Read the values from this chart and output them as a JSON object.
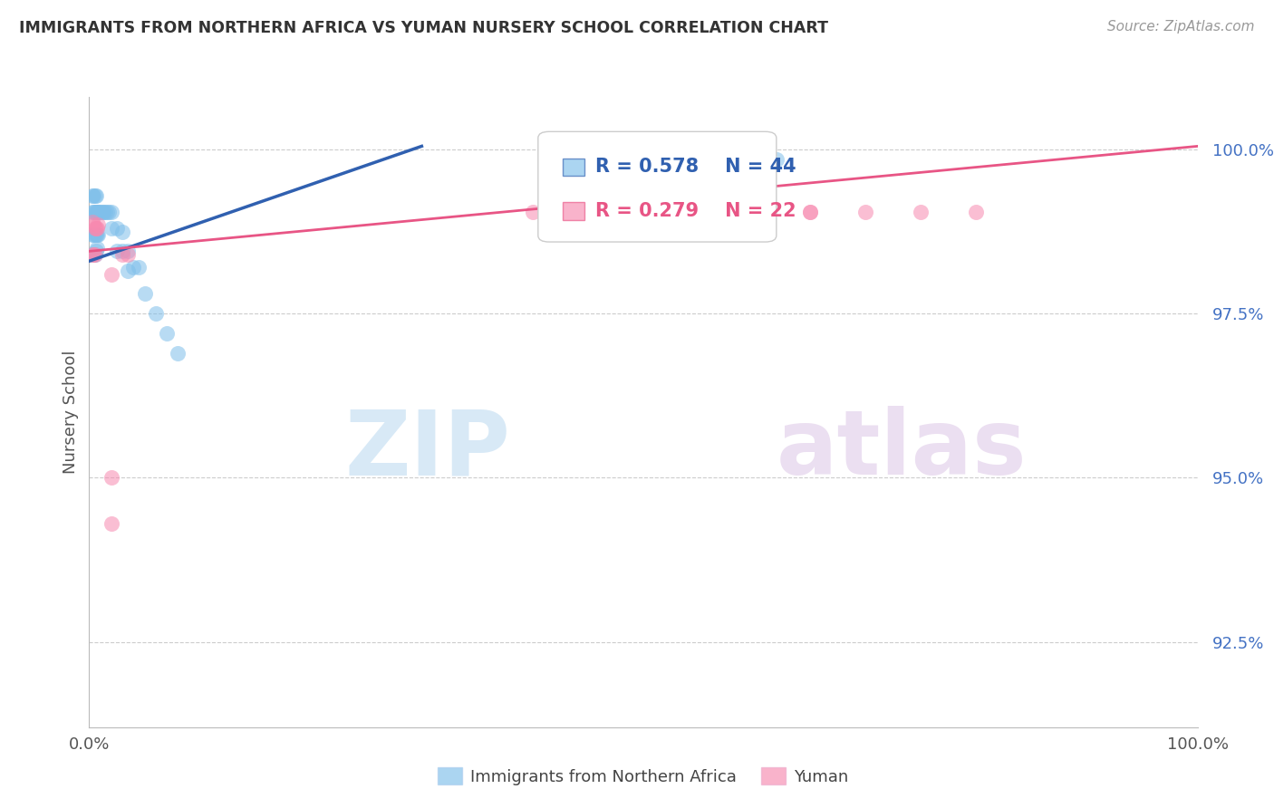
{
  "title": "IMMIGRANTS FROM NORTHERN AFRICA VS YUMAN NURSERY SCHOOL CORRELATION CHART",
  "source": "Source: ZipAtlas.com",
  "ylabel": "Nursery School",
  "ytick_labels": [
    "100.0%",
    "97.5%",
    "95.0%",
    "92.5%"
  ],
  "ytick_values": [
    1.0,
    0.975,
    0.95,
    0.925
  ],
  "xlim": [
    0.0,
    1.0
  ],
  "ylim": [
    0.912,
    1.008
  ],
  "legend_blue_r": "R = 0.578",
  "legend_blue_n": "N = 44",
  "legend_pink_r": "R = 0.279",
  "legend_pink_n": "N = 22",
  "legend_label_blue": "Immigrants from Northern Africa",
  "legend_label_pink": "Yuman",
  "blue_color": "#7fbfea",
  "pink_color": "#f78ab0",
  "blue_line_color": "#3060b0",
  "pink_line_color": "#e85585",
  "blue_scatter_x": [
    0.003,
    0.004,
    0.005,
    0.006,
    0.007,
    0.008,
    0.009,
    0.01,
    0.012,
    0.013,
    0.014,
    0.016,
    0.018,
    0.02,
    0.003,
    0.004,
    0.005,
    0.006,
    0.007,
    0.008,
    0.003,
    0.004,
    0.005,
    0.006,
    0.007,
    0.02,
    0.025,
    0.03,
    0.025,
    0.03,
    0.035,
    0.035,
    0.04,
    0.045,
    0.05,
    0.06,
    0.07,
    0.08,
    0.55,
    0.62,
    0.003,
    0.004,
    0.005,
    0.006
  ],
  "blue_scatter_y": [
    0.9905,
    0.9905,
    0.9905,
    0.9905,
    0.9905,
    0.9905,
    0.9905,
    0.9905,
    0.9905,
    0.9905,
    0.9905,
    0.9905,
    0.9905,
    0.9905,
    0.987,
    0.987,
    0.987,
    0.987,
    0.987,
    0.987,
    0.984,
    0.984,
    0.984,
    0.9845,
    0.985,
    0.988,
    0.988,
    0.9875,
    0.9845,
    0.9845,
    0.9845,
    0.9815,
    0.982,
    0.982,
    0.978,
    0.975,
    0.972,
    0.969,
    0.997,
    0.9985,
    0.993,
    0.993,
    0.993,
    0.993
  ],
  "pink_scatter_x": [
    0.003,
    0.004,
    0.005,
    0.006,
    0.007,
    0.008,
    0.003,
    0.004,
    0.005,
    0.03,
    0.035,
    0.6,
    0.65,
    0.7,
    0.75,
    0.8,
    0.6,
    0.65,
    0.4,
    0.02,
    0.02,
    0.02
  ],
  "pink_scatter_y": [
    0.989,
    0.9885,
    0.988,
    0.988,
    0.988,
    0.9885,
    0.984,
    0.984,
    0.984,
    0.984,
    0.984,
    0.9905,
    0.9905,
    0.9905,
    0.9905,
    0.9905,
    0.9905,
    0.9905,
    0.9905,
    0.95,
    0.943,
    0.981
  ],
  "blue_trendline_x": [
    0.0,
    0.3
  ],
  "blue_trendline_y": [
    0.983,
    1.0005
  ],
  "pink_trendline_x": [
    0.0,
    1.0
  ],
  "pink_trendline_y": [
    0.9845,
    1.0005
  ],
  "watermark_zip": "ZIP",
  "watermark_atlas": "atlas",
  "background_color": "#ffffff",
  "grid_color": "#cccccc",
  "title_color": "#333333",
  "axis_label_color": "#555555",
  "ytick_color": "#4472c4",
  "xtick_color": "#555555"
}
